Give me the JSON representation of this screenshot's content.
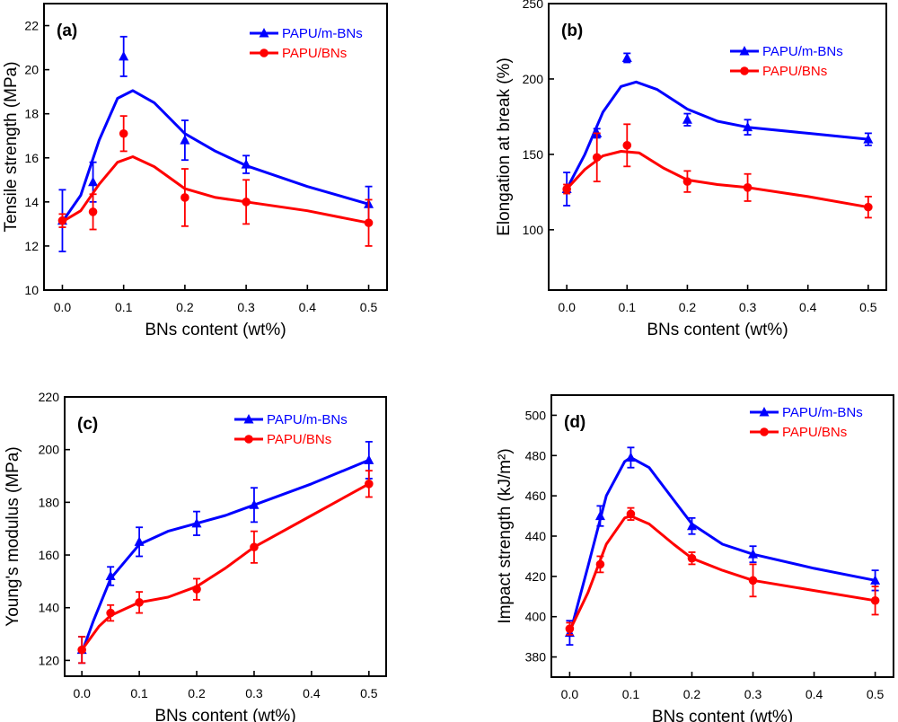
{
  "figure": {
    "layout": "2x2 grid of line charts"
  },
  "chart_data": [
    {
      "panel": "(a)",
      "type": "line",
      "xlabel": "BNs content (wt%)",
      "ylabel": "Tensile strength (MPa)",
      "xlim": [
        -0.03,
        0.53
      ],
      "ylim": [
        10,
        23
      ],
      "xticks": [
        0.0,
        0.1,
        0.2,
        0.3,
        0.4,
        0.5
      ],
      "xtick_labels": [
        "0.0",
        "0.1",
        "0.2",
        "0.3",
        "0.4",
        "0.5"
      ],
      "yticks": [
        10,
        12,
        14,
        16,
        18,
        20,
        22
      ],
      "ytick_labels": [
        "10",
        "12",
        "14",
        "16",
        "18",
        "20",
        "22"
      ],
      "legend_position": "top-right",
      "x": [
        0.0,
        0.05,
        0.1,
        0.2,
        0.3,
        0.5
      ],
      "series": [
        {
          "name": "PAPU/m-BNs",
          "color": "#0000ff",
          "marker": "triangle",
          "values": [
            13.15,
            14.9,
            20.6,
            16.8,
            15.7,
            13.9
          ],
          "errors": [
            1.4,
            0.9,
            0.9,
            0.9,
            0.4,
            0.8
          ],
          "curve": [
            [
              0.0,
              13.1
            ],
            [
              0.03,
              14.3
            ],
            [
              0.06,
              16.8
            ],
            [
              0.09,
              18.7
            ],
            [
              0.115,
              19.05
            ],
            [
              0.15,
              18.5
            ],
            [
              0.2,
              17.1
            ],
            [
              0.25,
              16.3
            ],
            [
              0.3,
              15.65
            ],
            [
              0.4,
              14.7
            ],
            [
              0.5,
              13.9
            ]
          ]
        },
        {
          "name": "PAPU/BNs",
          "color": "#ff0000",
          "marker": "circle",
          "values": [
            13.15,
            13.55,
            17.1,
            14.2,
            14.0,
            13.05
          ],
          "errors": [
            0.3,
            0.8,
            0.8,
            1.3,
            1.0,
            1.05
          ],
          "curve": [
            [
              0.0,
              13.1
            ],
            [
              0.03,
              13.6
            ],
            [
              0.06,
              14.8
            ],
            [
              0.09,
              15.8
            ],
            [
              0.115,
              16.05
            ],
            [
              0.15,
              15.6
            ],
            [
              0.2,
              14.6
            ],
            [
              0.25,
              14.2
            ],
            [
              0.3,
              14.0
            ],
            [
              0.4,
              13.6
            ],
            [
              0.5,
              13.05
            ]
          ]
        }
      ]
    },
    {
      "panel": "(b)",
      "type": "line",
      "xlabel": "BNs content (wt%)",
      "ylabel": "Elongation at break (%)",
      "xlim": [
        -0.03,
        0.53
      ],
      "ylim": [
        60,
        250
      ],
      "xticks": [
        0.0,
        0.1,
        0.2,
        0.3,
        0.4,
        0.5
      ],
      "xtick_labels": [
        "0.0",
        "0.1",
        "0.2",
        "0.3",
        "0.4",
        "0.5"
      ],
      "yticks": [
        100,
        150,
        200,
        250
      ],
      "ytick_labels": [
        "100",
        "150",
        "200",
        "250"
      ],
      "legend_position": "top-right",
      "x": [
        0.0,
        0.05,
        0.1,
        0.2,
        0.3,
        0.5
      ],
      "series": [
        {
          "name": "PAPU/m-BNs",
          "color": "#0000ff",
          "marker": "triangle",
          "values": [
            127,
            164,
            214,
            173,
            168,
            160
          ],
          "errors": [
            11,
            3,
            3,
            4,
            5,
            4
          ],
          "curve": [
            [
              0.0,
              127
            ],
            [
              0.03,
              150
            ],
            [
              0.06,
              178
            ],
            [
              0.09,
              195
            ],
            [
              0.115,
              198
            ],
            [
              0.15,
              193
            ],
            [
              0.2,
              180
            ],
            [
              0.25,
              172
            ],
            [
              0.3,
              168
            ],
            [
              0.4,
              164
            ],
            [
              0.5,
              160
            ]
          ]
        },
        {
          "name": "PAPU/BNs",
          "color": "#ff0000",
          "marker": "circle",
          "values": [
            127,
            148,
            156,
            132,
            128,
            115
          ],
          "errors": [
            3,
            16,
            14,
            7,
            9,
            7
          ],
          "curve": [
            [
              0.0,
              127
            ],
            [
              0.03,
              140
            ],
            [
              0.06,
              149
            ],
            [
              0.09,
              152
            ],
            [
              0.12,
              151
            ],
            [
              0.16,
              141
            ],
            [
              0.2,
              133
            ],
            [
              0.25,
              130
            ],
            [
              0.3,
              128
            ],
            [
              0.4,
              122
            ],
            [
              0.5,
              115
            ]
          ]
        }
      ]
    },
    {
      "panel": "(c)",
      "type": "line",
      "xlabel": "BNs content (wt%)",
      "ylabel": "Young's modulus (MPa)",
      "xlim": [
        -0.03,
        0.53
      ],
      "ylim": [
        114,
        220
      ],
      "xticks": [
        0.0,
        0.1,
        0.2,
        0.3,
        0.4,
        0.5
      ],
      "xtick_labels": [
        "0.0",
        "0.1",
        "0.2",
        "0.3",
        "0.4",
        "0.5"
      ],
      "yticks": [
        120,
        140,
        160,
        180,
        200,
        220
      ],
      "ytick_labels": [
        "120",
        "140",
        "160",
        "180",
        "200",
        "220"
      ],
      "legend_position": "top-right",
      "x": [
        0.0,
        0.05,
        0.1,
        0.2,
        0.3,
        0.5
      ],
      "series": [
        {
          "name": "PAPU/m-BNs",
          "color": "#0000ff",
          "marker": "triangle",
          "values": [
            124,
            152,
            165,
            172,
            179,
            196
          ],
          "errors": [
            5,
            3.5,
            5.5,
            4.5,
            6.5,
            7
          ],
          "curve": [
            [
              0.0,
              123
            ],
            [
              0.02,
              135
            ],
            [
              0.05,
              151
            ],
            [
              0.1,
              164
            ],
            [
              0.15,
              169
            ],
            [
              0.2,
              172
            ],
            [
              0.25,
              175
            ],
            [
              0.3,
              179
            ],
            [
              0.4,
              187
            ],
            [
              0.5,
              196
            ]
          ]
        },
        {
          "name": "PAPU/BNs",
          "color": "#ff0000",
          "marker": "circle",
          "values": [
            124,
            138,
            142,
            147,
            163,
            187
          ],
          "errors": [
            5,
            3,
            4,
            4,
            6,
            5
          ],
          "curve": [
            [
              0.0,
              124
            ],
            [
              0.03,
              133
            ],
            [
              0.05,
              137
            ],
            [
              0.1,
              142
            ],
            [
              0.15,
              144
            ],
            [
              0.2,
              148
            ],
            [
              0.25,
              155
            ],
            [
              0.3,
              163
            ],
            [
              0.4,
              175
            ],
            [
              0.5,
              187
            ]
          ]
        }
      ]
    },
    {
      "panel": "(d)",
      "type": "line",
      "xlabel": "BNs content (wt%)",
      "ylabel": "Impact strength (kJ/m²)",
      "xlim": [
        -0.03,
        0.53
      ],
      "ylim": [
        370,
        510
      ],
      "xticks": [
        0.0,
        0.1,
        0.2,
        0.3,
        0.4,
        0.5
      ],
      "xtick_labels": [
        "0.0",
        "0.1",
        "0.2",
        "0.3",
        "0.4",
        "0.5"
      ],
      "yticks": [
        380,
        400,
        420,
        440,
        460,
        480,
        500
      ],
      "ytick_labels": [
        "380",
        "400",
        "420",
        "440",
        "460",
        "480",
        "500"
      ],
      "legend_position": "top-right",
      "x": [
        0.0,
        0.05,
        0.1,
        0.2,
        0.3,
        0.5
      ],
      "series": [
        {
          "name": "PAPU/m-BNs",
          "color": "#0000ff",
          "marker": "triangle",
          "values": [
            392,
            450,
            479,
            445,
            431,
            418
          ],
          "errors": [
            6,
            5,
            5,
            4,
            4,
            5
          ],
          "curve": [
            [
              0.0,
              391
            ],
            [
              0.03,
              425
            ],
            [
              0.06,
              460
            ],
            [
              0.09,
              477
            ],
            [
              0.1,
              479
            ],
            [
              0.13,
              474
            ],
            [
              0.17,
              458
            ],
            [
              0.2,
              446
            ],
            [
              0.25,
              436
            ],
            [
              0.3,
              431
            ],
            [
              0.4,
              424
            ],
            [
              0.5,
              418
            ]
          ]
        },
        {
          "name": "PAPU/BNs",
          "color": "#ff0000",
          "marker": "circle",
          "values": [
            394,
            426,
            451,
            429,
            418,
            408
          ],
          "errors": [
            3,
            4,
            3,
            3,
            8,
            7
          ],
          "curve": [
            [
              0.0,
              393
            ],
            [
              0.03,
              412
            ],
            [
              0.06,
              436
            ],
            [
              0.09,
              449
            ],
            [
              0.1,
              450
            ],
            [
              0.13,
              446
            ],
            [
              0.17,
              436
            ],
            [
              0.2,
              429
            ],
            [
              0.25,
              423
            ],
            [
              0.3,
              418
            ],
            [
              0.4,
              413
            ],
            [
              0.5,
              408
            ]
          ]
        }
      ]
    }
  ]
}
